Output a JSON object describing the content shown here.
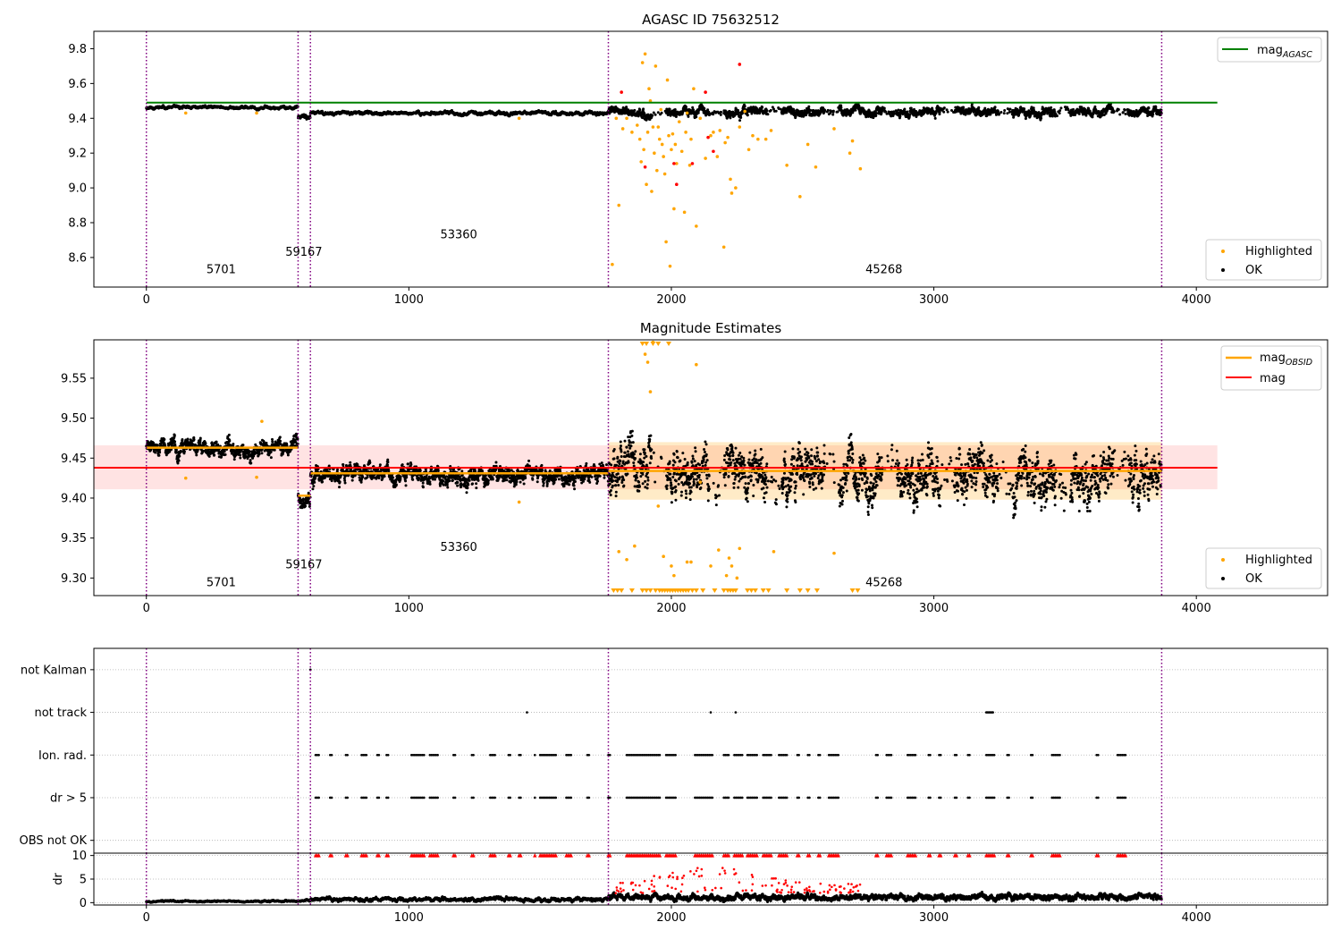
{
  "chart_data": [
    {
      "type": "scatter",
      "title": "AGASC ID 75632512",
      "xlim": [
        -200,
        4500
      ],
      "ylim": [
        8.43,
        9.9
      ],
      "xticks": [
        0,
        1000,
        2000,
        3000,
        4000
      ],
      "yticks": [
        8.6,
        8.8,
        9.0,
        9.2,
        9.4,
        9.6,
        9.8
      ],
      "ytick_decimals": 1,
      "grid": false,
      "legend_top": {
        "position": "top-right",
        "entries": [
          {
            "label": "mag",
            "sub": "AGASC",
            "color": "#008000"
          }
        ]
      },
      "legend_bottom": {
        "position": "bottom-right",
        "entries": [
          {
            "label": "Highlighted",
            "color": "#ffa500"
          },
          {
            "label": "OK",
            "color": "#000000"
          }
        ]
      },
      "obs_boundaries": [
        0,
        578,
        625,
        1760,
        3868
      ],
      "obs_labels": [
        {
          "text": "5701",
          "x": 285,
          "y": 8.51
        },
        {
          "text": "59167",
          "x": 600,
          "y": 8.61
        },
        {
          "text": "53360",
          "x": 1190,
          "y": 8.71
        },
        {
          "text": "45268",
          "x": 2810,
          "y": 8.51
        }
      ],
      "ref_line": {
        "name": "mag_AGASC",
        "y": 9.49,
        "x0": 0,
        "x1": 4080,
        "color": "#008000"
      },
      "ok_segments": [
        {
          "x0": 0,
          "x1": 578,
          "mean": 9.462,
          "noise": 0.008,
          "gap": 0
        },
        {
          "x0": 578,
          "x1": 625,
          "mean": 9.405,
          "noise": 0.012,
          "gap": 0
        },
        {
          "x0": 625,
          "x1": 1760,
          "mean": 9.43,
          "noise": 0.009,
          "gap": 0
        },
        {
          "x0": 1760,
          "x1": 3868,
          "mean": 9.435,
          "noise": 0.025,
          "gap": 1
        }
      ],
      "highlighted_points": [
        [
          150,
          9.43
        ],
        [
          420,
          9.43
        ],
        [
          1420,
          9.4
        ],
        [
          1775,
          8.56
        ],
        [
          1790,
          9.4
        ],
        [
          1800,
          8.9
        ],
        [
          1815,
          9.34
        ],
        [
          1830,
          9.4
        ],
        [
          1850,
          9.32
        ],
        [
          1870,
          9.36
        ],
        [
          1880,
          9.28
        ],
        [
          1885,
          9.15
        ],
        [
          1890,
          9.72
        ],
        [
          1895,
          9.22
        ],
        [
          1900,
          9.77
        ],
        [
          1905,
          9.02
        ],
        [
          1910,
          9.32
        ],
        [
          1915,
          9.57
        ],
        [
          1920,
          9.5
        ],
        [
          1925,
          8.98
        ],
        [
          1930,
          9.35
        ],
        [
          1935,
          9.2
        ],
        [
          1940,
          9.7
        ],
        [
          1945,
          9.1
        ],
        [
          1950,
          9.35
        ],
        [
          1955,
          9.28
        ],
        [
          1960,
          9.45
        ],
        [
          1965,
          9.25
        ],
        [
          1970,
          9.18
        ],
        [
          1975,
          9.08
        ],
        [
          1980,
          8.69
        ],
        [
          1985,
          9.62
        ],
        [
          1990,
          9.3
        ],
        [
          1995,
          8.55
        ],
        [
          2000,
          9.22
        ],
        [
          2005,
          9.31
        ],
        [
          2010,
          8.88
        ],
        [
          2015,
          9.25
        ],
        [
          2020,
          9.14
        ],
        [
          2030,
          9.38
        ],
        [
          2040,
          9.21
        ],
        [
          2050,
          8.86
        ],
        [
          2055,
          9.32
        ],
        [
          2060,
          9.43
        ],
        [
          2070,
          9.13
        ],
        [
          2075,
          9.28
        ],
        [
          2085,
          9.57
        ],
        [
          2095,
          8.78
        ],
        [
          2110,
          9.4
        ],
        [
          2130,
          9.17
        ],
        [
          2150,
          9.3
        ],
        [
          2160,
          9.32
        ],
        [
          2175,
          9.18
        ],
        [
          2185,
          9.33
        ],
        [
          2200,
          8.66
        ],
        [
          2205,
          9.26
        ],
        [
          2215,
          9.29
        ],
        [
          2225,
          9.05
        ],
        [
          2230,
          8.97
        ],
        [
          2245,
          9.0
        ],
        [
          2260,
          9.35
        ],
        [
          2280,
          9.44
        ],
        [
          2295,
          9.22
        ],
        [
          2310,
          9.3
        ],
        [
          2330,
          9.28
        ],
        [
          2360,
          9.28
        ],
        [
          2380,
          9.33
        ],
        [
          2440,
          9.13
        ],
        [
          2490,
          8.95
        ],
        [
          2520,
          9.25
        ],
        [
          2550,
          9.12
        ],
        [
          2620,
          9.34
        ],
        [
          2680,
          9.2
        ],
        [
          2690,
          9.27
        ],
        [
          2720,
          9.11
        ]
      ],
      "red_points": [
        [
          1810,
          9.55
        ],
        [
          1900,
          9.12
        ],
        [
          2010,
          9.14
        ],
        [
          2020,
          9.02
        ],
        [
          2080,
          9.14
        ],
        [
          2130,
          9.55
        ],
        [
          2140,
          9.29
        ],
        [
          2160,
          9.21
        ],
        [
          2260,
          9.71
        ]
      ]
    },
    {
      "type": "scatter",
      "title": "Magnitude Estimates",
      "xlim": [
        -200,
        4500
      ],
      "ylim": [
        9.278,
        9.598
      ],
      "xticks": [
        0,
        1000,
        2000,
        3000,
        4000
      ],
      "yticks": [
        9.3,
        9.35,
        9.4,
        9.45,
        9.5,
        9.55
      ],
      "ytick_decimals": 2,
      "grid": false,
      "legend_top": {
        "position": "top-right",
        "entries": [
          {
            "label": "mag",
            "sub": "OBSID",
            "color": "#ffa500"
          },
          {
            "label": "mag",
            "sub": "",
            "color": "#ff0000"
          }
        ]
      },
      "legend_bottom": {
        "position": "bottom-right",
        "entries": [
          {
            "label": "Highlighted",
            "color": "#ffa500"
          },
          {
            "label": "OK",
            "color": "#000000"
          }
        ]
      },
      "obs_boundaries": [
        0,
        578,
        625,
        1760,
        3868
      ],
      "obs_labels": [
        {
          "text": "5701",
          "x": 285,
          "y": 9.29
        },
        {
          "text": "59167",
          "x": 600,
          "y": 9.312
        },
        {
          "text": "53360",
          "x": 1190,
          "y": 9.334
        },
        {
          "text": "45268",
          "x": 2810,
          "y": 9.29
        }
      ],
      "mag_line": {
        "y": 9.438,
        "band": [
          9.411,
          9.466
        ],
        "x0": -200,
        "x1": 4080
      },
      "obsid_lines": [
        {
          "x0": 0,
          "x1": 578,
          "y": 9.463
        },
        {
          "x0": 578,
          "x1": 625,
          "y": 9.403
        },
        {
          "x0": 625,
          "x1": 1760,
          "y": 9.431
        },
        {
          "x0": 1760,
          "x1": 3868,
          "y": 9.434,
          "band": [
            9.398,
            9.47
          ]
        }
      ],
      "ok_segments": [
        {
          "x0": 0,
          "x1": 578,
          "mean": 9.463,
          "noise": 0.01,
          "gap": 0
        },
        {
          "x0": 578,
          "x1": 625,
          "mean": 9.4,
          "noise": 0.01,
          "gap": 0
        },
        {
          "x0": 625,
          "x1": 1760,
          "mean": 9.43,
          "noise": 0.011,
          "gap": 0
        },
        {
          "x0": 1760,
          "x1": 3868,
          "mean": 9.43,
          "noise": 0.03,
          "gap": 1
        }
      ],
      "highlighted_points": [
        [
          150,
          9.425
        ],
        [
          420,
          9.426
        ],
        [
          440,
          9.496
        ],
        [
          1420,
          9.395
        ],
        [
          1800,
          9.333
        ],
        [
          1830,
          9.323
        ],
        [
          1860,
          9.34
        ],
        [
          1900,
          9.58
        ],
        [
          1910,
          9.57
        ],
        [
          1920,
          9.533
        ],
        [
          1930,
          9.595
        ],
        [
          1950,
          9.39
        ],
        [
          1970,
          9.327
        ],
        [
          2000,
          9.315
        ],
        [
          2010,
          9.303
        ],
        [
          2030,
          9.433
        ],
        [
          2060,
          9.32
        ],
        [
          2075,
          9.32
        ],
        [
          2095,
          9.567
        ],
        [
          2110,
          9.42
        ],
        [
          2150,
          9.315
        ],
        [
          2180,
          9.335
        ],
        [
          2210,
          9.303
        ],
        [
          2220,
          9.325
        ],
        [
          2230,
          9.315
        ],
        [
          2250,
          9.3
        ],
        [
          2260,
          9.337
        ],
        [
          2390,
          9.333
        ],
        [
          2620,
          9.331
        ]
      ],
      "lower_markers": [
        1780,
        1795,
        1810,
        1850,
        1890,
        1905,
        1920,
        1940,
        1955,
        1965,
        1975,
        1985,
        1995,
        2005,
        2015,
        2025,
        2035,
        2045,
        2055,
        2065,
        2080,
        2095,
        2120,
        2165,
        2200,
        2215,
        2225,
        2235,
        2245,
        2290,
        2305,
        2320,
        2350,
        2370,
        2440,
        2490,
        2520,
        2555,
        2690,
        2710
      ],
      "upper_markers": [
        1890,
        1905,
        1930,
        1950,
        1990
      ]
    },
    {
      "type": "scatter",
      "title": "",
      "xlim": [
        -200,
        4500
      ],
      "ylim": [
        -0.3,
        4.5
      ],
      "ycategories": [
        "OBS not OK",
        "dr > 5",
        "Ion. rad.",
        "not track",
        "not Kalman"
      ],
      "grid": true,
      "obs_boundaries": [
        0,
        578,
        625,
        1760,
        3868
      ],
      "flags": {
        "not_kalman": [
          625
        ],
        "not_track": [
          1450,
          2150,
          2245,
          3200,
          3205,
          3210,
          3215,
          3220,
          3225
        ],
        "ion_rad_clusters": [
          [
            645,
            660
          ],
          [
            700,
            710
          ],
          [
            760,
            770
          ],
          [
            820,
            840
          ],
          [
            880,
            890
          ],
          [
            915,
            925
          ],
          [
            1010,
            1060
          ],
          [
            1080,
            1110
          ],
          [
            1170,
            1180
          ],
          [
            1240,
            1250
          ],
          [
            1310,
            1330
          ],
          [
            1380,
            1390
          ],
          [
            1420,
            1430
          ],
          [
            1480,
            1480
          ],
          [
            1500,
            1560
          ],
          [
            1600,
            1620
          ],
          [
            1680,
            1690
          ],
          [
            1760,
            1770
          ],
          [
            1830,
            1960
          ],
          [
            1980,
            2020
          ],
          [
            2090,
            2160
          ],
          [
            2200,
            2220
          ],
          [
            2240,
            2270
          ],
          [
            2290,
            2330
          ],
          [
            2350,
            2380
          ],
          [
            2410,
            2440
          ],
          [
            2480,
            2490
          ],
          [
            2520,
            2530
          ],
          [
            2560,
            2570
          ],
          [
            2600,
            2640
          ],
          [
            2780,
            2790
          ],
          [
            2820,
            2840
          ],
          [
            2900,
            2930
          ],
          [
            2980,
            2990
          ],
          [
            3020,
            3030
          ],
          [
            3080,
            3090
          ],
          [
            3130,
            3140
          ],
          [
            3200,
            3230
          ],
          [
            3280,
            3290
          ],
          [
            3370,
            3380
          ],
          [
            3450,
            3480
          ],
          [
            3620,
            3630
          ],
          [
            3700,
            3730
          ]
        ]
      }
    },
    {
      "type": "scatter",
      "title": "",
      "ylabel": "dr",
      "xlim": [
        -200,
        4500
      ],
      "ylim": [
        -0.5,
        10.5
      ],
      "xticks": [
        0,
        1000,
        2000,
        3000,
        4000
      ],
      "yticks": [
        0,
        5,
        10
      ],
      "grid": true,
      "obs_boundaries": [
        0,
        578,
        625,
        1760,
        3868
      ],
      "ok_segments": [
        {
          "x0": 0,
          "x1": 578,
          "mean": 0.3,
          "noise": 0.15
        },
        {
          "x0": 578,
          "x1": 625,
          "mean": 0.4,
          "noise": 0.2
        },
        {
          "x0": 625,
          "x1": 1760,
          "mean": 0.7,
          "noise": 0.35
        },
        {
          "x0": 1760,
          "x1": 3868,
          "mean": 1.1,
          "noise": 0.6
        }
      ],
      "red_region": {
        "x0": 1780,
        "x1": 2720,
        "ymin": 2,
        "ymax": 7.5
      }
    }
  ]
}
